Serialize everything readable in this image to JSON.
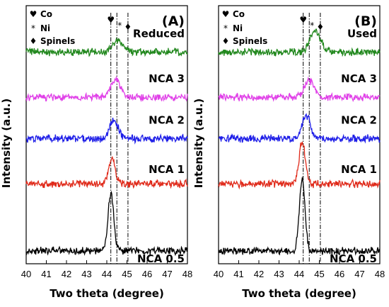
{
  "chart_data": [
    {
      "panel_label": "(A)",
      "type": "line",
      "xlabel": "Two theta (degree)",
      "ylabel": "Intensity (a.u.)",
      "xlim": [
        40,
        48
      ],
      "x_ticks": [
        40,
        41,
        42,
        43,
        44,
        45,
        46,
        47,
        48
      ],
      "reference_lines": [
        {
          "symbol": "♥",
          "x": 44.2
        },
        {
          "symbol": "*",
          "x": 44.5
        },
        {
          "symbol": "♦",
          "x": 45.05
        }
      ],
      "legend": [
        {
          "symbol": "♥",
          "label": "Co"
        },
        {
          "symbol": "*",
          "label": "Ni"
        },
        {
          "symbol": "♦",
          "label": "Spinels"
        }
      ],
      "series": [
        {
          "name": "NCA 0.5",
          "color": "#000000",
          "baseline": 0.05,
          "peak_x": 44.2,
          "peak_height": 0.22,
          "peak_width": 0.14
        },
        {
          "name": "NCA 1",
          "color": "#e02a1a",
          "baseline": 0.31,
          "peak_x": 44.25,
          "peak_height": 0.1,
          "peak_width": 0.16
        },
        {
          "name": "NCA 2",
          "color": "#1f1fe8",
          "baseline": 0.485,
          "peak_x": 44.35,
          "peak_height": 0.075,
          "peak_width": 0.2
        },
        {
          "name": "NCA 3",
          "color": "#e040e8",
          "baseline": 0.645,
          "peak_x": 44.45,
          "peak_height": 0.07,
          "peak_width": 0.24
        },
        {
          "name": "Reduced",
          "color": "#22881e",
          "baseline": 0.82,
          "peak_x": 44.55,
          "peak_height": 0.045,
          "peak_width": 0.26
        }
      ]
    },
    {
      "panel_label": "(B)",
      "type": "line",
      "xlabel": "Two theta (degree)",
      "ylabel": "Intensity (a.u.)",
      "xlim": [
        40,
        48
      ],
      "x_ticks": [
        40,
        41,
        42,
        43,
        44,
        45,
        46,
        47,
        48
      ],
      "reference_lines": [
        {
          "symbol": "♥",
          "x": 44.2
        },
        {
          "symbol": "*",
          "x": 44.5
        },
        {
          "symbol": "♦",
          "x": 45.05
        }
      ],
      "legend": [
        {
          "symbol": "♥",
          "label": "Co"
        },
        {
          "symbol": "*",
          "label": "Ni"
        },
        {
          "symbol": "♦",
          "label": "Spinels"
        }
      ],
      "series": [
        {
          "name": "NCA 0.5",
          "color": "#000000",
          "baseline": 0.05,
          "peak_x": 44.15,
          "peak_height": 0.28,
          "peak_width": 0.14
        },
        {
          "name": "NCA 1",
          "color": "#e02a1a",
          "baseline": 0.31,
          "peak_x": 44.15,
          "peak_height": 0.16,
          "peak_width": 0.16
        },
        {
          "name": "NCA 2",
          "color": "#1f1fe8",
          "baseline": 0.485,
          "peak_x": 44.35,
          "peak_height": 0.09,
          "peak_width": 0.2
        },
        {
          "name": "NCA 3",
          "color": "#e040e8",
          "baseline": 0.645,
          "peak_x": 44.5,
          "peak_height": 0.065,
          "peak_width": 0.24
        },
        {
          "name": "Used",
          "color": "#22881e",
          "baseline": 0.82,
          "peak_x": 44.8,
          "peak_height": 0.08,
          "peak_width": 0.26
        }
      ]
    }
  ]
}
